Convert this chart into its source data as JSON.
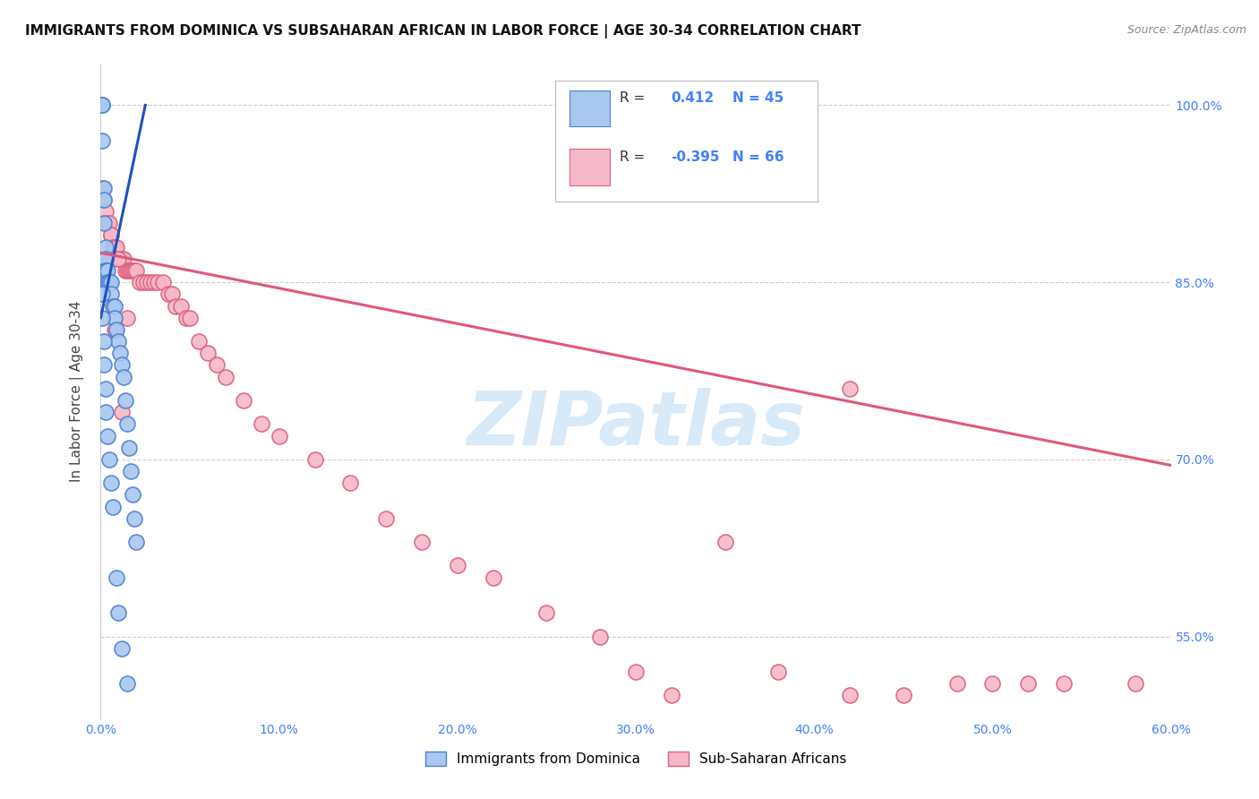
{
  "title": "IMMIGRANTS FROM DOMINICA VS SUBSAHARAN AFRICAN IN LABOR FORCE | AGE 30-34 CORRELATION CHART",
  "source": "Source: ZipAtlas.com",
  "ylabel": "In Labor Force | Age 30-34",
  "r_dominica": 0.412,
  "n_dominica": 45,
  "r_subsaharan": -0.395,
  "n_subsaharan": 66,
  "xlim": [
    0.0,
    0.6
  ],
  "ylim": [
    0.48,
    1.035
  ],
  "yticks": [
    0.55,
    0.7,
    0.85,
    1.0
  ],
  "ytick_labels": [
    "55.0%",
    "70.0%",
    "85.0%",
    "100.0%"
  ],
  "xticks": [
    0.0,
    0.1,
    0.2,
    0.3,
    0.4,
    0.5,
    0.6
  ],
  "xtick_labels": [
    "0.0%",
    "10.0%",
    "20.0%",
    "30.0%",
    "40.0%",
    "50.0%",
    "60.0%"
  ],
  "color_dominica": "#a8c8f0",
  "color_subsaharan": "#f5b8c8",
  "edge_dominica": "#5080d0",
  "edge_subsaharan": "#e06080",
  "trendline_dominica": "#2050c0",
  "trendline_subsaharan": "#e05878",
  "background": "#ffffff",
  "grid_color": "#cccccc",
  "label_color": "#4080ff",
  "title_color": "#111111",
  "source_color": "#888888",
  "watermark_color": "#c8e0f4",
  "dominica_x": [
    0.001,
    0.001,
    0.001,
    0.002,
    0.002,
    0.002,
    0.003,
    0.003,
    0.003,
    0.003,
    0.004,
    0.004,
    0.005,
    0.005,
    0.006,
    0.006,
    0.007,
    0.008,
    0.008,
    0.009,
    0.01,
    0.011,
    0.012,
    0.013,
    0.014,
    0.015,
    0.016,
    0.017,
    0.018,
    0.019,
    0.02,
    0.001,
    0.001,
    0.002,
    0.002,
    0.003,
    0.003,
    0.004,
    0.005,
    0.006,
    0.007,
    0.009,
    0.01,
    0.012,
    0.015
  ],
  "dominica_y": [
    1.0,
    1.0,
    0.97,
    0.93,
    0.92,
    0.9,
    0.88,
    0.87,
    0.86,
    0.86,
    0.86,
    0.85,
    0.85,
    0.85,
    0.85,
    0.84,
    0.83,
    0.83,
    0.82,
    0.81,
    0.8,
    0.79,
    0.78,
    0.77,
    0.75,
    0.73,
    0.71,
    0.69,
    0.67,
    0.65,
    0.63,
    0.84,
    0.82,
    0.8,
    0.78,
    0.76,
    0.74,
    0.72,
    0.7,
    0.68,
    0.66,
    0.6,
    0.57,
    0.54,
    0.51
  ],
  "subsaharan_x": [
    0.001,
    0.002,
    0.003,
    0.004,
    0.005,
    0.006,
    0.006,
    0.007,
    0.008,
    0.009,
    0.01,
    0.011,
    0.012,
    0.013,
    0.014,
    0.015,
    0.016,
    0.017,
    0.018,
    0.019,
    0.02,
    0.022,
    0.024,
    0.026,
    0.028,
    0.03,
    0.032,
    0.035,
    0.038,
    0.04,
    0.042,
    0.045,
    0.048,
    0.05,
    0.055,
    0.06,
    0.065,
    0.07,
    0.08,
    0.09,
    0.1,
    0.12,
    0.14,
    0.16,
    0.18,
    0.2,
    0.22,
    0.25,
    0.28,
    0.3,
    0.32,
    0.35,
    0.38,
    0.42,
    0.45,
    0.48,
    0.5,
    0.52,
    0.54,
    0.58,
    0.005,
    0.008,
    0.01,
    0.012,
    0.015,
    0.42
  ],
  "subsaharan_y": [
    0.93,
    0.92,
    0.91,
    0.9,
    0.9,
    0.89,
    0.89,
    0.88,
    0.88,
    0.88,
    0.87,
    0.87,
    0.87,
    0.87,
    0.86,
    0.86,
    0.86,
    0.86,
    0.86,
    0.86,
    0.86,
    0.85,
    0.85,
    0.85,
    0.85,
    0.85,
    0.85,
    0.85,
    0.84,
    0.84,
    0.83,
    0.83,
    0.82,
    0.82,
    0.8,
    0.79,
    0.78,
    0.77,
    0.75,
    0.73,
    0.72,
    0.7,
    0.68,
    0.65,
    0.63,
    0.61,
    0.6,
    0.57,
    0.55,
    0.52,
    0.5,
    0.63,
    0.52,
    0.5,
    0.5,
    0.51,
    0.51,
    0.51,
    0.51,
    0.51,
    0.87,
    0.81,
    0.87,
    0.74,
    0.82,
    0.76
  ],
  "dom_trend_x0": 0.0,
  "dom_trend_x1": 0.025,
  "dom_trend_y0": 0.82,
  "dom_trend_y1": 1.0,
  "sub_trend_x0": 0.0,
  "sub_trend_x1": 0.6,
  "sub_trend_y0": 0.875,
  "sub_trend_y1": 0.695
}
